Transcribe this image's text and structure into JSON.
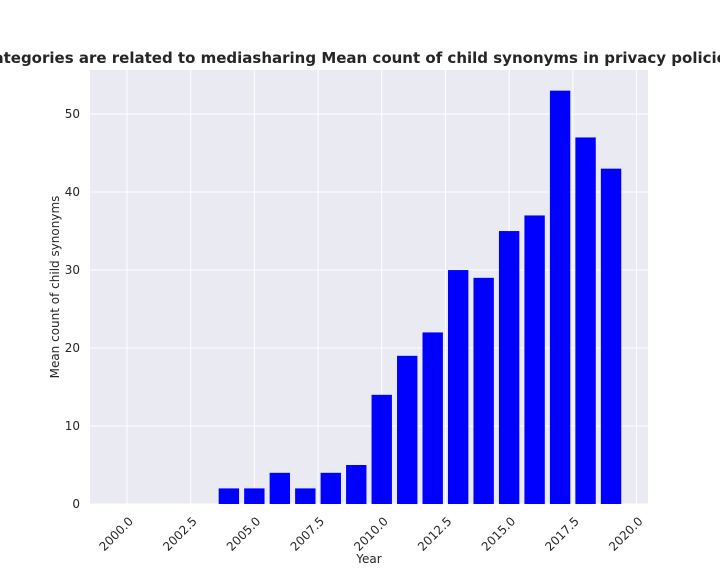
{
  "chart_data": {
    "type": "bar",
    "title": "en categories are related to mediasharing Mean count of child synonyms in privacy policies by",
    "xlabel": "Year",
    "ylabel": "Mean count of child synonyms",
    "x": [
      2004,
      2005,
      2006,
      2007,
      2008,
      2009,
      2010,
      2011,
      2012,
      2013,
      2014,
      2015,
      2016,
      2017,
      2018,
      2019
    ],
    "values": [
      2,
      2,
      4,
      2,
      4,
      5,
      14,
      19,
      22,
      30,
      29,
      35,
      37,
      53,
      47,
      43
    ],
    "xlim": [
      1998.55,
      2020.45
    ],
    "ylim": [
      0,
      55.65
    ],
    "x_ticks": [
      2000.0,
      2002.5,
      2005.0,
      2007.5,
      2010.0,
      2012.5,
      2015.0,
      2017.5,
      2020.0
    ],
    "x_tick_labels": [
      "2000.0",
      "2002.5",
      "2005.0",
      "2007.5",
      "2010.0",
      "2012.5",
      "2015.0",
      "2017.5",
      "2020.0"
    ],
    "y_ticks": [
      0,
      10,
      20,
      30,
      40,
      50
    ],
    "y_tick_labels": [
      "0",
      "10",
      "20",
      "30",
      "40",
      "50"
    ],
    "bar_width": 0.8,
    "bar_color": "#0000ff",
    "plot_background": "#eaeaf2",
    "grid_color": "#ffffff",
    "grid": true,
    "x_tick_rotation": 45
  }
}
